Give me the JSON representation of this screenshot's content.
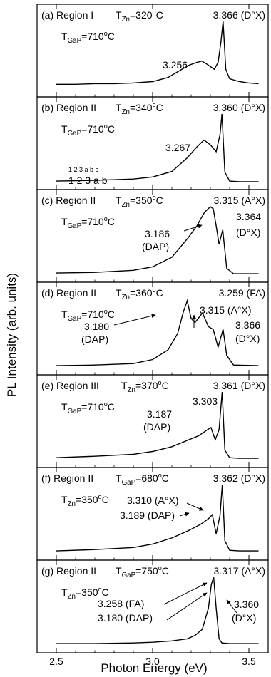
{
  "chart_data": {
    "type": "line",
    "ylabel": "PL Intensity (arb. units)",
    "xlabel": "Photon Energy (eV)",
    "xlim": [
      2.4,
      3.6
    ],
    "x_ticks": [
      "2.5",
      "3.0",
      "3.5"
    ],
    "x_tick_values": [
      2.5,
      3.0,
      3.5
    ],
    "grid": false,
    "panels": [
      {
        "tag": "(a)",
        "region": "Region I",
        "cond_var": "Zn",
        "cond_val": "320",
        "sub_var": "GaP",
        "sub_val": "710",
        "peak_label": "3.366 (D°X)",
        "annotations": [
          {
            "text": "3.256"
          }
        ],
        "series": [
          {
            "x": [
              2.5,
              2.6,
              2.7,
              2.8,
              2.9,
              3.0,
              3.08,
              3.14,
              3.19,
              3.23,
              3.256,
              3.29,
              3.32,
              3.34,
              3.355,
              3.366,
              3.38,
              3.4,
              3.45,
              3.5,
              3.55
            ],
            "y": [
              0.08,
              0.08,
              0.09,
              0.09,
              0.1,
              0.12,
              0.18,
              0.28,
              0.36,
              0.4,
              0.42,
              0.36,
              0.3,
              0.4,
              0.7,
              1.0,
              0.3,
              0.16,
              0.12,
              0.1,
              0.09
            ]
          }
        ]
      },
      {
        "tag": "(b)",
        "region": "Region II",
        "cond_var": "Zn",
        "cond_val": "340",
        "sub_var": "GaP",
        "sub_val": "710",
        "peak_label": "3.360 (D°X)",
        "annotations": [
          {
            "text": "3.267"
          },
          {
            "text": "1 2 3 a b c"
          },
          {
            "text": "1 2 3 a b"
          }
        ],
        "series": [
          {
            "x": [
              2.5,
              2.7,
              2.9,
              3.0,
              3.1,
              3.18,
              3.23,
              3.267,
              3.3,
              3.33,
              3.35,
              3.36,
              3.375,
              3.4,
              3.45,
              3.55
            ],
            "y": [
              0.02,
              0.03,
              0.05,
              0.08,
              0.16,
              0.36,
              0.52,
              0.62,
              0.55,
              0.45,
              0.7,
              1.0,
              0.15,
              0.02,
              0.01,
              0.01
            ]
          }
        ]
      },
      {
        "tag": "(c)",
        "region": "Region II",
        "cond_var": "Zn",
        "cond_val": "350",
        "sub_var": "GaP",
        "sub_val": "710",
        "peak_label": "3.315 (A°X)",
        "annotations": [
          {
            "text": "3.186"
          },
          {
            "text": "(DAP)"
          },
          {
            "text": "3.364"
          },
          {
            "text": "(D°X)"
          }
        ],
        "series": [
          {
            "x": [
              2.5,
              2.7,
              2.9,
              3.0,
              3.1,
              3.186,
              3.23,
              3.27,
              3.3,
              3.315,
              3.33,
              3.345,
              3.364,
              3.385,
              3.42,
              3.55
            ],
            "y": [
              0.03,
              0.04,
              0.07,
              0.12,
              0.26,
              0.55,
              0.72,
              0.92,
              1.0,
              0.97,
              0.72,
              0.45,
              0.66,
              0.1,
              0.02,
              0.02
            ]
          }
        ]
      },
      {
        "tag": "(d)",
        "region": "Region II",
        "cond_var": "Zn",
        "cond_val": "360",
        "sub_var": "GaP",
        "sub_val": "710",
        "peak_label": "3.259 (FA)",
        "annotations": [
          {
            "text": "3.180"
          },
          {
            "text": "(DAP)"
          },
          {
            "text": "3.315 (A°X)"
          },
          {
            "text": "3.366"
          },
          {
            "text": "(D°X)"
          }
        ],
        "series": [
          {
            "x": [
              2.5,
              2.7,
              2.9,
              3.0,
              3.08,
              3.13,
              3.16,
              3.18,
              3.2,
              3.22,
              3.259,
              3.29,
              3.315,
              3.34,
              3.366,
              3.385,
              3.42,
              3.55
            ],
            "y": [
              0.03,
              0.04,
              0.06,
              0.12,
              0.26,
              0.5,
              0.82,
              0.98,
              0.72,
              0.66,
              0.8,
              0.6,
              0.56,
              0.3,
              0.56,
              0.18,
              0.04,
              0.03
            ]
          }
        ]
      },
      {
        "tag": "(e)",
        "region": "Region III",
        "cond_var": "Zn",
        "cond_val": "370",
        "sub_var": "GaP",
        "sub_val": "710",
        "peak_label": "3.361 (D°X)",
        "annotations": [
          {
            "text": "3.187"
          },
          {
            "text": "(DAP)"
          },
          {
            "text": "3.303"
          }
        ],
        "series": [
          {
            "x": [
              2.5,
              2.7,
              2.9,
              3.0,
              3.1,
              3.187,
              3.24,
              3.28,
              3.303,
              3.325,
              3.345,
              3.361,
              3.375,
              3.4,
              3.45,
              3.55
            ],
            "y": [
              0.04,
              0.06,
              0.09,
              0.13,
              0.2,
              0.3,
              0.36,
              0.44,
              0.48,
              0.3,
              0.45,
              1.0,
              0.15,
              0.04,
              0.03,
              0.03
            ]
          }
        ]
      },
      {
        "tag": "(f)",
        "region": "Region II",
        "cond_var": "GaP",
        "cond_val": "680",
        "sub_var": "Zn",
        "sub_val": "350",
        "peak_label": "3.362 (D°X)",
        "annotations": [
          {
            "text": "3.310 (A°X)"
          },
          {
            "text": "3.189 (DAP)"
          }
        ],
        "series": [
          {
            "x": [
              2.5,
              2.7,
              2.9,
              3.0,
              3.1,
              3.189,
              3.25,
              3.29,
              3.31,
              3.33,
              3.35,
              3.362,
              3.375,
              3.4,
              3.45,
              3.55
            ],
            "y": [
              0.03,
              0.05,
              0.08,
              0.13,
              0.22,
              0.33,
              0.42,
              0.5,
              0.56,
              0.28,
              0.55,
              1.0,
              0.18,
              0.04,
              0.03,
              0.03
            ]
          }
        ]
      },
      {
        "tag": "(g)",
        "region": "Region II",
        "cond_var": "GaP",
        "cond_val": "750",
        "sub_var": "Zn",
        "sub_val": "350",
        "peak_label": "3.317 (A°X)",
        "annotations": [
          {
            "text": "3.258 (FA)"
          },
          {
            "text": "3.180 (DAP)"
          },
          {
            "text": "3.360"
          },
          {
            "text": "(D°X)"
          }
        ],
        "series": [
          {
            "x": [
              2.5,
              2.7,
              2.9,
              3.0,
              3.1,
              3.18,
              3.22,
              3.258,
              3.29,
              3.305,
              3.317,
              3.33,
              3.345,
              3.36,
              3.4,
              3.55
            ],
            "y": [
              0.03,
              0.03,
              0.04,
              0.05,
              0.07,
              0.1,
              0.15,
              0.24,
              0.55,
              0.9,
              1.0,
              0.55,
              0.1,
              0.04,
              0.03,
              0.03
            ]
          }
        ]
      }
    ]
  }
}
